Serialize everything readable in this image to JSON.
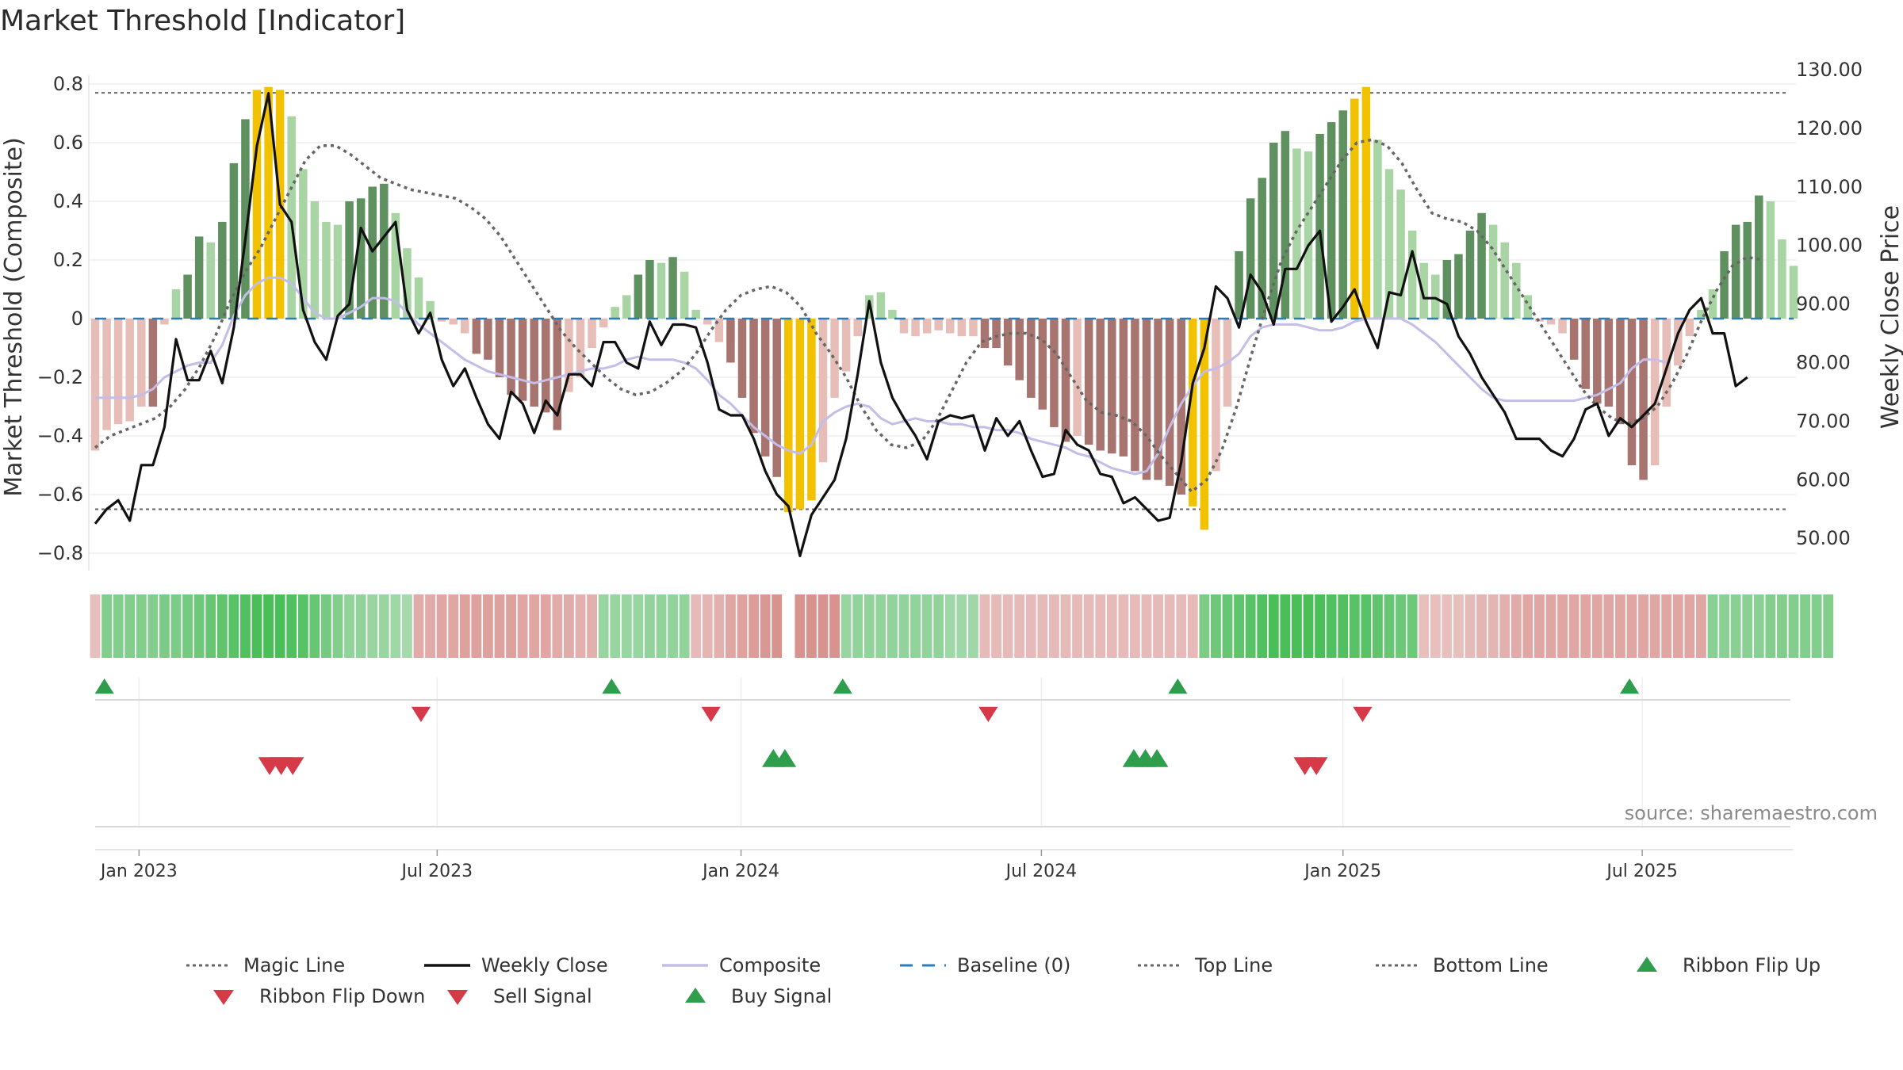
{
  "colors": {
    "strong_green": "#5f9160",
    "light_green": "#a9d4a3",
    "dark_red": "#a87470",
    "light_red": "#e7bdb8",
    "gold": "#f2c200",
    "close": "#111111",
    "composite": "#c3bde8",
    "magic": "#666666",
    "baseline": "#2a7db8",
    "buy": "#2e9e4d",
    "sell": "#d63a48"
  },
  "chart_data": {
    "type": "bar+line",
    "title": "Market Threshold [Indicator]",
    "ylabel_left": "Market Threshold (Composite)",
    "ylabel_right": "Weekly Close Price",
    "ylim_left": [
      -0.85,
      0.85
    ],
    "ylim_right": [
      45,
      130
    ],
    "left_ticks": [
      0.8,
      0.6,
      0.4,
      0.2,
      0,
      -0.2,
      -0.4,
      -0.6,
      -0.8
    ],
    "left_tick_labels": [
      "0.8",
      "0.6",
      "0.4",
      "0.2",
      "0",
      "−0.2",
      "−0.4",
      "−0.6",
      "−0.8"
    ],
    "right_ticks": [
      130,
      120,
      110,
      100,
      90,
      80,
      70,
      60,
      50
    ],
    "right_tick_labels": [
      "130.00",
      "120.00",
      "110.00",
      "100.00",
      "90.00",
      "80.00",
      "70.00",
      "60.00",
      "50.00"
    ],
    "top_line": 0.77,
    "bottom_line": -0.65,
    "baseline": 0,
    "x_start": "2022-12-05",
    "x_tick_labels": [
      "Jan 2023",
      "Jul 2023",
      "Jan 2024",
      "Jul 2024",
      "Jan 2025",
      "Jul 2025"
    ],
    "x_tick_weeks": [
      3.8,
      29.6,
      55.9,
      81.9,
      108.0,
      133.9
    ],
    "composite_bars": [
      -0.45,
      -0.38,
      -0.36,
      -0.35,
      -0.3,
      -0.3,
      -0.02,
      0.1,
      0.15,
      0.28,
      0.26,
      0.33,
      0.53,
      0.68,
      0.78,
      0.79,
      0.78,
      0.69,
      0.51,
      0.4,
      0.33,
      0.32,
      0.4,
      0.41,
      0.45,
      0.46,
      0.36,
      0.24,
      0.14,
      0.06,
      -0.01,
      -0.02,
      -0.05,
      -0.12,
      -0.14,
      -0.2,
      -0.26,
      -0.28,
      -0.3,
      -0.32,
      -0.38,
      -0.25,
      -0.2,
      -0.1,
      -0.03,
      0.04,
      0.08,
      0.15,
      0.2,
      0.19,
      0.21,
      0.16,
      0.03,
      -0.02,
      -0.08,
      -0.15,
      -0.27,
      -0.39,
      -0.47,
      -0.54,
      -0.66,
      -0.65,
      -0.62,
      -0.49,
      -0.27,
      -0.18,
      -0.06,
      0.08,
      0.09,
      0.03,
      -0.05,
      -0.06,
      -0.05,
      -0.04,
      -0.05,
      -0.06,
      -0.06,
      -0.1,
      -0.1,
      -0.16,
      -0.21,
      -0.27,
      -0.31,
      -0.37,
      -0.42,
      -0.4,
      -0.43,
      -0.45,
      -0.46,
      -0.47,
      -0.52,
      -0.55,
      -0.55,
      -0.57,
      -0.6,
      -0.64,
      -0.72,
      -0.52,
      -0.3,
      0.23,
      0.41,
      0.48,
      0.6,
      0.64,
      0.58,
      0.57,
      0.63,
      0.67,
      0.71,
      0.75,
      0.79,
      0.61,
      0.51,
      0.44,
      0.3,
      0.19,
      0.15,
      0.2,
      0.22,
      0.3,
      0.36,
      0.32,
      0.26,
      0.19,
      0.08,
      -0.01,
      -0.02,
      -0.05,
      -0.14,
      -0.24,
      -0.29,
      -0.3,
      -0.36,
      -0.5,
      -0.55,
      -0.5,
      -0.3,
      -0.16,
      -0.06,
      0.03,
      0.1,
      0.23,
      0.32,
      0.33,
      0.42,
      0.4,
      0.27,
      0.18
    ],
    "weekly_close": [
      52.5,
      55,
      56.5,
      53,
      62.5,
      62.5,
      69,
      84,
      77,
      77,
      82,
      76.5,
      86,
      101,
      117,
      126,
      107,
      104,
      89,
      83.5,
      80.5,
      88,
      90,
      103,
      99,
      101.5,
      104,
      89,
      85,
      88.5,
      80.5,
      76,
      79,
      74,
      69.5,
      67,
      75,
      73,
      68,
      73.5,
      71,
      78,
      78,
      76,
      83.5,
      83.5,
      80,
      79,
      87,
      83,
      86.5,
      86.5,
      86,
      80,
      72,
      71,
      71,
      67,
      61.5,
      57.5,
      55.5,
      47,
      54,
      57,
      60,
      67,
      78,
      90.5,
      80,
      74,
      70.5,
      67.5,
      63.5,
      70,
      71,
      70.5,
      71,
      65,
      70.5,
      67.5,
      70,
      65,
      60.5,
      61,
      68.5,
      66,
      65,
      61,
      60.5,
      56,
      57,
      55,
      53,
      53.5,
      63,
      76.5,
      82.5,
      93,
      91,
      86,
      95,
      92,
      86.5,
      96,
      96,
      100,
      102.5,
      87,
      89.5,
      92.5,
      87,
      82.5,
      92,
      91.5,
      99,
      91,
      91,
      90,
      84.5,
      81.5,
      77.5,
      74.5,
      71.5,
      67,
      67,
      67,
      65,
      64,
      67,
      72,
      73,
      67.5,
      70.5,
      69,
      71,
      73,
      79,
      85,
      89,
      91,
      85,
      85,
      76,
      77.5
    ],
    "composite_line": [
      -0.27,
      -0.27,
      -0.27,
      -0.27,
      -0.26,
      -0.24,
      -0.2,
      -0.18,
      -0.16,
      -0.15,
      -0.15,
      -0.09,
      0.01,
      0.08,
      0.12,
      0.14,
      0.14,
      0.12,
      0.07,
      0.02,
      0.0,
      0.0,
      0.02,
      0.04,
      0.07,
      0.07,
      0.06,
      0.02,
      -0.02,
      -0.05,
      -0.08,
      -0.11,
      -0.14,
      -0.16,
      -0.18,
      -0.19,
      -0.2,
      -0.21,
      -0.22,
      -0.21,
      -0.2,
      -0.19,
      -0.18,
      -0.17,
      -0.17,
      -0.16,
      -0.14,
      -0.13,
      -0.14,
      -0.14,
      -0.14,
      -0.15,
      -0.17,
      -0.21,
      -0.26,
      -0.29,
      -0.33,
      -0.37,
      -0.4,
      -0.43,
      -0.45,
      -0.46,
      -0.43,
      -0.35,
      -0.32,
      -0.3,
      -0.29,
      -0.3,
      -0.34,
      -0.36,
      -0.35,
      -0.34,
      -0.35,
      -0.35,
      -0.36,
      -0.36,
      -0.37,
      -0.37,
      -0.38,
      -0.38,
      -0.39,
      -0.41,
      -0.42,
      -0.43,
      -0.44,
      -0.46,
      -0.47,
      -0.49,
      -0.51,
      -0.52,
      -0.53,
      -0.52,
      -0.46,
      -0.37,
      -0.29,
      -0.23,
      -0.18,
      -0.17,
      -0.15,
      -0.12,
      -0.06,
      -0.03,
      -0.02,
      -0.02,
      -0.02,
      -0.03,
      -0.04,
      -0.04,
      -0.03,
      -0.01,
      0.0,
      0.0,
      0.0,
      0.0,
      -0.02,
      -0.05,
      -0.08,
      -0.12,
      -0.16,
      -0.2,
      -0.24,
      -0.27,
      -0.28,
      -0.28,
      -0.28,
      -0.28,
      -0.28,
      -0.28,
      -0.28,
      -0.27,
      -0.26,
      -0.24,
      -0.22,
      -0.17,
      -0.14,
      -0.14,
      -0.15
    ],
    "magic_line": [
      -0.44,
      -0.4,
      -0.38,
      -0.36,
      -0.34,
      -0.3,
      -0.24,
      -0.16,
      -0.06,
      0.06,
      0.16,
      0.24,
      0.34,
      0.44,
      0.54,
      0.59,
      0.59,
      0.56,
      0.52,
      0.48,
      0.46,
      0.44,
      0.43,
      0.42,
      0.41,
      0.38,
      0.34,
      0.28,
      0.2,
      0.12,
      0.04,
      -0.04,
      -0.1,
      -0.15,
      -0.2,
      -0.24,
      -0.26,
      -0.25,
      -0.22,
      -0.18,
      -0.12,
      -0.04,
      0.03,
      0.08,
      0.1,
      0.11,
      0.09,
      0.04,
      -0.05,
      -0.12,
      -0.2,
      -0.3,
      -0.38,
      -0.43,
      -0.44,
      -0.42,
      -0.35,
      -0.25,
      -0.15,
      -0.08,
      -0.06,
      -0.05,
      -0.05,
      -0.07,
      -0.12,
      -0.2,
      -0.28,
      -0.32,
      -0.33,
      -0.35,
      -0.4,
      -0.47,
      -0.53,
      -0.59,
      -0.55,
      -0.45,
      -0.3,
      -0.12,
      0.05,
      0.2,
      0.3,
      0.38,
      0.46,
      0.54,
      0.6,
      0.61,
      0.59,
      0.53,
      0.44,
      0.36,
      0.34,
      0.33,
      0.3,
      0.24,
      0.16,
      0.08,
      0.0,
      -0.08,
      -0.16,
      -0.24,
      -0.3,
      -0.34,
      -0.36,
      -0.34,
      -0.3,
      -0.22,
      -0.12,
      0.0,
      0.1,
      0.18,
      0.21,
      0.2
    ],
    "magic_line_start_week": 0,
    "magic_line_week_step": 1.3,
    "ribbon_strength": [
      -0.3,
      0.55,
      0.55,
      0.55,
      0.55,
      0.55,
      0.6,
      0.6,
      0.65,
      0.7,
      0.75,
      0.8,
      0.85,
      0.9,
      0.95,
      0.95,
      0.95,
      0.9,
      0.85,
      0.75,
      0.65,
      0.55,
      0.45,
      0.45,
      0.4,
      0.4,
      0.35,
      0.3,
      -0.5,
      -0.5,
      -0.55,
      -0.55,
      -0.6,
      -0.6,
      -0.6,
      -0.6,
      -0.6,
      -0.55,
      -0.55,
      -0.55,
      -0.5,
      -0.5,
      -0.45,
      -0.45,
      0.4,
      0.4,
      0.4,
      0.4,
      0.45,
      0.45,
      0.45,
      0.45,
      -0.35,
      -0.4,
      -0.45,
      -0.55,
      -0.6,
      -0.65,
      -0.7,
      -0.75,
      null,
      -0.75,
      -0.75,
      -0.75,
      -0.75,
      0.4,
      0.45,
      0.45,
      0.45,
      0.45,
      0.45,
      0.45,
      0.45,
      0.45,
      0.35,
      0.35,
      0.35,
      -0.35,
      -0.35,
      -0.35,
      -0.35,
      -0.35,
      -0.35,
      -0.35,
      -0.35,
      -0.35,
      -0.35,
      -0.35,
      -0.35,
      -0.35,
      -0.35,
      -0.35,
      -0.35,
      -0.35,
      -0.35,
      -0.35,
      0.6,
      0.7,
      0.75,
      0.8,
      0.85,
      0.9,
      0.95,
      0.95,
      0.95,
      0.95,
      0.95,
      0.9,
      0.9,
      0.85,
      0.85,
      0.8,
      0.75,
      0.7,
      0.7,
      -0.3,
      -0.3,
      -0.3,
      -0.3,
      -0.35,
      -0.4,
      -0.4,
      -0.45,
      -0.5,
      -0.55,
      -0.55,
      -0.55,
      -0.55,
      -0.55,
      -0.55,
      -0.55,
      -0.55,
      -0.55,
      -0.55,
      -0.55,
      -0.55,
      -0.55,
      -0.55,
      -0.55,
      -0.55,
      0.5,
      0.5,
      0.5,
      0.5,
      0.5,
      0.55,
      0.55,
      0.55,
      0.55,
      0.55,
      0.55
    ],
    "ribbon_flip_up_weeks": [
      0.8,
      44.7,
      64.7,
      93.7,
      132.8
    ],
    "ribbon_flip_down_weeks": [
      28.2,
      53.3,
      77.3,
      109.7
    ],
    "sell_signal_weeks": [
      15.1,
      16.1,
      17.1
    ],
    "buy_signal_weeks": [
      58.7,
      59.7,
      89.9,
      90.9,
      91.9
    ],
    "sell_signal_weeks_2": [
      104.7,
      105.7
    ]
  },
  "legend": [
    {
      "label": "Magic Line",
      "kind": "dotted-line",
      "color_key": "magic"
    },
    {
      "label": "Weekly Close",
      "kind": "solid-line",
      "color_key": "close"
    },
    {
      "label": "Composite",
      "kind": "solid-line",
      "color_key": "composite"
    },
    {
      "label": "Baseline (0)",
      "kind": "dashed-line",
      "color_key": "baseline"
    },
    {
      "label": "Top Line",
      "kind": "dotted-line",
      "color_key": "magic"
    },
    {
      "label": "Bottom Line",
      "kind": "dotted-line",
      "color_key": "magic"
    },
    {
      "label": "Ribbon Flip Up",
      "kind": "triangle-up",
      "color_key": "buy"
    },
    {
      "label": "Ribbon Flip Down",
      "kind": "triangle-down",
      "color_key": "sell"
    },
    {
      "label": "Sell Signal",
      "kind": "triangle-down",
      "color_key": "sell"
    },
    {
      "label": "Buy Signal",
      "kind": "triangle-up",
      "color_key": "buy"
    }
  ],
  "source": "source: sharemaestro.com"
}
